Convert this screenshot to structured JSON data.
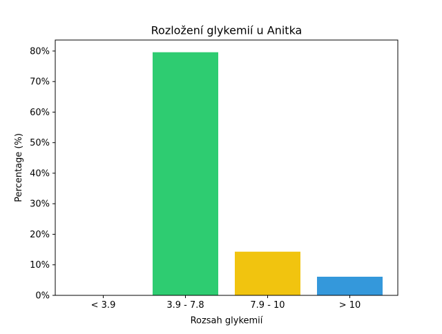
{
  "chart_data": {
    "type": "bar",
    "title": "Rozložení glykemií u  Anitka",
    "xlabel": "Rozsah glykemií",
    "ylabel": "Percentage (%)",
    "categories": [
      "< 3.9",
      "3.9 - 7.8",
      "7.9 - 10",
      "> 10"
    ],
    "values": [
      0,
      79.6,
      14.3,
      6.1
    ],
    "colors": [
      "#e74c3c",
      "#2ecc71",
      "#f1c40f",
      "#3498db"
    ],
    "ylim": [
      0,
      83.6
    ],
    "yticks": [
      0,
      10,
      20,
      30,
      40,
      50,
      60,
      70,
      80
    ],
    "ytick_suffix": "%",
    "grid": false,
    "legend": "none"
  }
}
